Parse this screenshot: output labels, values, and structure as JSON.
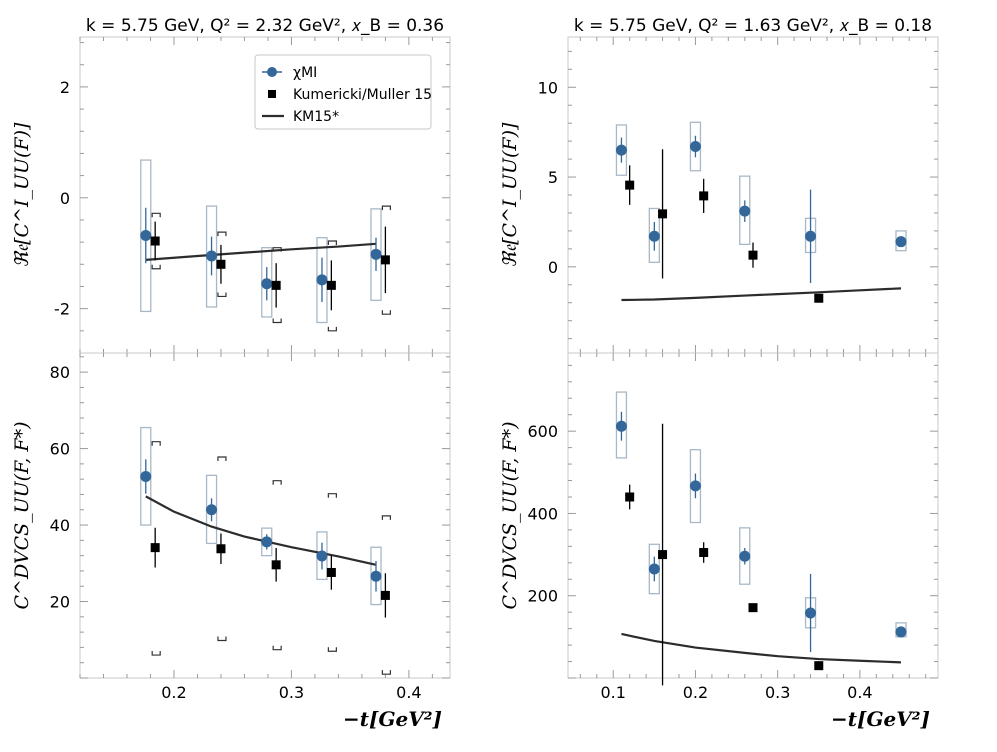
{
  "figure_colors": {
    "blue": "#33679a",
    "black": "#000000",
    "curve": "#2c2c2c",
    "box": "#a8b8c6",
    "bracket": "#333333"
  },
  "chart_data": [
    {
      "id": "top-left",
      "type": "scatter",
      "title": "k = 5.75 GeV, Q² = 2.32 GeV², 𝑥_B = 0.36",
      "ylabel": "ℜ𝔢[C^I_UU(F)]",
      "xlabel": "",
      "xlim": [
        0.12,
        0.435
      ],
      "ylim": [
        -2.8,
        2.9
      ],
      "xticks": [
        0.2,
        0.3,
        0.4
      ],
      "xtick_labels": [
        "",
        "",
        ""
      ],
      "yticks": [
        2,
        0,
        -2
      ],
      "ytick_labels": [
        "2",
        "0",
        "-2"
      ],
      "legend": {
        "position": "top-right",
        "entries": [
          {
            "label": "χMI",
            "marker": "circle"
          },
          {
            "label": "Kumericki/Muller 15",
            "marker": "square"
          },
          {
            "label": "KM15*",
            "marker": "line"
          }
        ]
      },
      "series": [
        {
          "name": "χMI",
          "x": [
            0.176,
            0.232,
            0.279,
            0.326,
            0.372
          ],
          "y": [
            -0.68,
            -1.05,
            -1.55,
            -1.48,
            -1.02
          ],
          "err": [
            0.5,
            0.35,
            0.3,
            0.4,
            0.3
          ],
          "box": [
            [
              -2.05,
              0.68
            ],
            [
              -1.97,
              -0.15
            ],
            [
              -2.15,
              -0.9
            ],
            [
              -2.25,
              -0.72
            ],
            [
              -1.85,
              -0.2
            ]
          ]
        },
        {
          "name": "Kumericki/Muller 15",
          "x": [
            0.184,
            0.24,
            0.287,
            0.334,
            0.38
          ],
          "y": [
            -0.78,
            -1.2,
            -1.58,
            -1.58,
            -1.12
          ],
          "err": [
            0.35,
            0.35,
            0.4,
            0.45,
            0.6
          ],
          "bracket": [
            [
              -1.28,
              -0.28
            ],
            [
              -1.78,
              -0.62
            ],
            [
              -2.25,
              -0.9
            ],
            [
              -2.4,
              -0.78
            ],
            [
              -2.1,
              -0.15
            ]
          ]
        },
        {
          "name": "KM15*",
          "x": [
            0.176,
            0.22,
            0.26,
            0.3,
            0.34,
            0.372
          ],
          "y": [
            -1.12,
            -1.05,
            -0.99,
            -0.93,
            -0.88,
            -0.83
          ]
        }
      ]
    },
    {
      "id": "top-right",
      "type": "scatter",
      "title": "k = 5.75 GeV, Q² = 1.63 GeV², 𝑥_B = 0.18",
      "ylabel": "ℜ𝔢[C^I_UU(F)]",
      "xlabel": "",
      "xlim": [
        0.045,
        0.495
      ],
      "ylim": [
        -4.8,
        12.8
      ],
      "xticks": [
        0.1,
        0.2,
        0.3,
        0.4
      ],
      "xtick_labels": [
        "",
        "",
        "",
        ""
      ],
      "yticks": [
        10,
        5,
        0
      ],
      "ytick_labels": [
        "10",
        "5",
        "0"
      ],
      "series": [
        {
          "name": "χMI",
          "x": [
            0.11,
            0.15,
            0.2,
            0.26,
            0.34,
            0.45
          ],
          "y": [
            6.5,
            1.7,
            6.7,
            3.1,
            1.7,
            1.4
          ],
          "err": [
            0.7,
            0.8,
            0.6,
            0.6,
            2.6,
            0
          ],
          "box": [
            [
              5.1,
              7.9
            ],
            [
              0.25,
              3.25
            ],
            [
              5.35,
              8.05
            ],
            [
              1.25,
              5.05
            ],
            [
              0.8,
              2.7
            ],
            [
              0.9,
              2.0
            ]
          ]
        },
        {
          "name": "Kumericki/Muller 15",
          "x": [
            0.12,
            0.16,
            0.21,
            0.27,
            0.35
          ],
          "y": [
            4.55,
            2.95,
            3.95,
            0.65,
            -1.75
          ],
          "err": [
            1.1,
            3.6,
            0.95,
            0.7,
            0
          ]
        },
        {
          "name": "KM15*",
          "x": [
            0.11,
            0.15,
            0.2,
            0.26,
            0.3,
            0.34,
            0.4,
            0.45
          ],
          "y": [
            -1.85,
            -1.82,
            -1.73,
            -1.6,
            -1.52,
            -1.44,
            -1.31,
            -1.2
          ]
        }
      ]
    },
    {
      "id": "bottom-left",
      "type": "scatter",
      "title": "",
      "ylabel": "C^DVCS_UU(F, F*)",
      "xlabel": "−t[GeV²]",
      "xlim": [
        0.12,
        0.435
      ],
      "ylim": [
        0,
        85
      ],
      "xticks": [
        0.2,
        0.3,
        0.4
      ],
      "xtick_labels": [
        "0.2",
        "0.3",
        "0.4"
      ],
      "yticks": [
        80,
        60,
        40,
        20
      ],
      "ytick_labels": [
        "80",
        "60",
        "40",
        "20"
      ],
      "series": [
        {
          "name": "χMI",
          "x": [
            0.176,
            0.232,
            0.279,
            0.326,
            0.372
          ],
          "y": [
            52.7,
            44.0,
            35.6,
            31.9,
            26.6
          ],
          "err": [
            4.5,
            3.0,
            2.0,
            3.5,
            4.0
          ],
          "box": [
            [
              40,
              65.5
            ],
            [
              35.2,
              53
            ],
            [
              32,
              39.2
            ],
            [
              25.8,
              38.2
            ],
            [
              19.2,
              34.2
            ]
          ]
        },
        {
          "name": "Kumericki/Muller 15",
          "x": [
            0.184,
            0.24,
            0.287,
            0.334,
            0.38
          ],
          "y": [
            34.1,
            33.8,
            29.6,
            27.6,
            21.6
          ],
          "err": [
            5.2,
            4.0,
            4.4,
            4.5,
            5.8
          ],
          "bracket": [
            [
              6.0,
              61.8
            ],
            [
              9.8,
              57.8
            ],
            [
              7.4,
              51.6
            ],
            [
              7.0,
              48.2
            ],
            [
              1.0,
              42.4
            ]
          ]
        },
        {
          "name": "KM15*",
          "x": [
            0.176,
            0.2,
            0.232,
            0.26,
            0.3,
            0.34,
            0.372
          ],
          "y": [
            47.5,
            43.5,
            39.6,
            37.0,
            34.2,
            31.8,
            29.6
          ]
        }
      ]
    },
    {
      "id": "bottom-right",
      "type": "scatter",
      "title": "",
      "ylabel": "C^DVCS_UU(F, F*)",
      "xlabel": "−t[GeV²]",
      "xlim": [
        0.045,
        0.495
      ],
      "ylim": [
        0,
        790
      ],
      "xticks": [
        0.1,
        0.2,
        0.3,
        0.4
      ],
      "xtick_labels": [
        "0.1",
        "0.2",
        "0.3",
        "0.4"
      ],
      "yticks": [
        600,
        400,
        200
      ],
      "ytick_labels": [
        "600",
        "400",
        "200"
      ],
      "series": [
        {
          "name": "χMI",
          "x": [
            0.11,
            0.15,
            0.2,
            0.26,
            0.34,
            0.45
          ],
          "y": [
            612,
            265,
            467,
            296,
            158,
            112
          ],
          "err": [
            35,
            30,
            30,
            20,
            95,
            0
          ],
          "box": [
            [
              535,
              695
            ],
            [
              205,
              325
            ],
            [
              378,
              555
            ],
            [
              228,
              365
            ],
            [
              122,
              195
            ],
            [
              100,
              134
            ]
          ]
        },
        {
          "name": "Kumericki/Muller 15",
          "x": [
            0.12,
            0.16,
            0.21,
            0.27,
            0.35
          ],
          "y": [
            440,
            300,
            305,
            171,
            30
          ],
          "err": [
            30,
            318,
            25,
            0,
            0
          ]
        },
        {
          "name": "KM15*",
          "x": [
            0.11,
            0.15,
            0.2,
            0.26,
            0.3,
            0.35,
            0.4,
            0.45
          ],
          "y": [
            107,
            90,
            74,
            61,
            53,
            46,
            42,
            38
          ]
        }
      ]
    }
  ]
}
